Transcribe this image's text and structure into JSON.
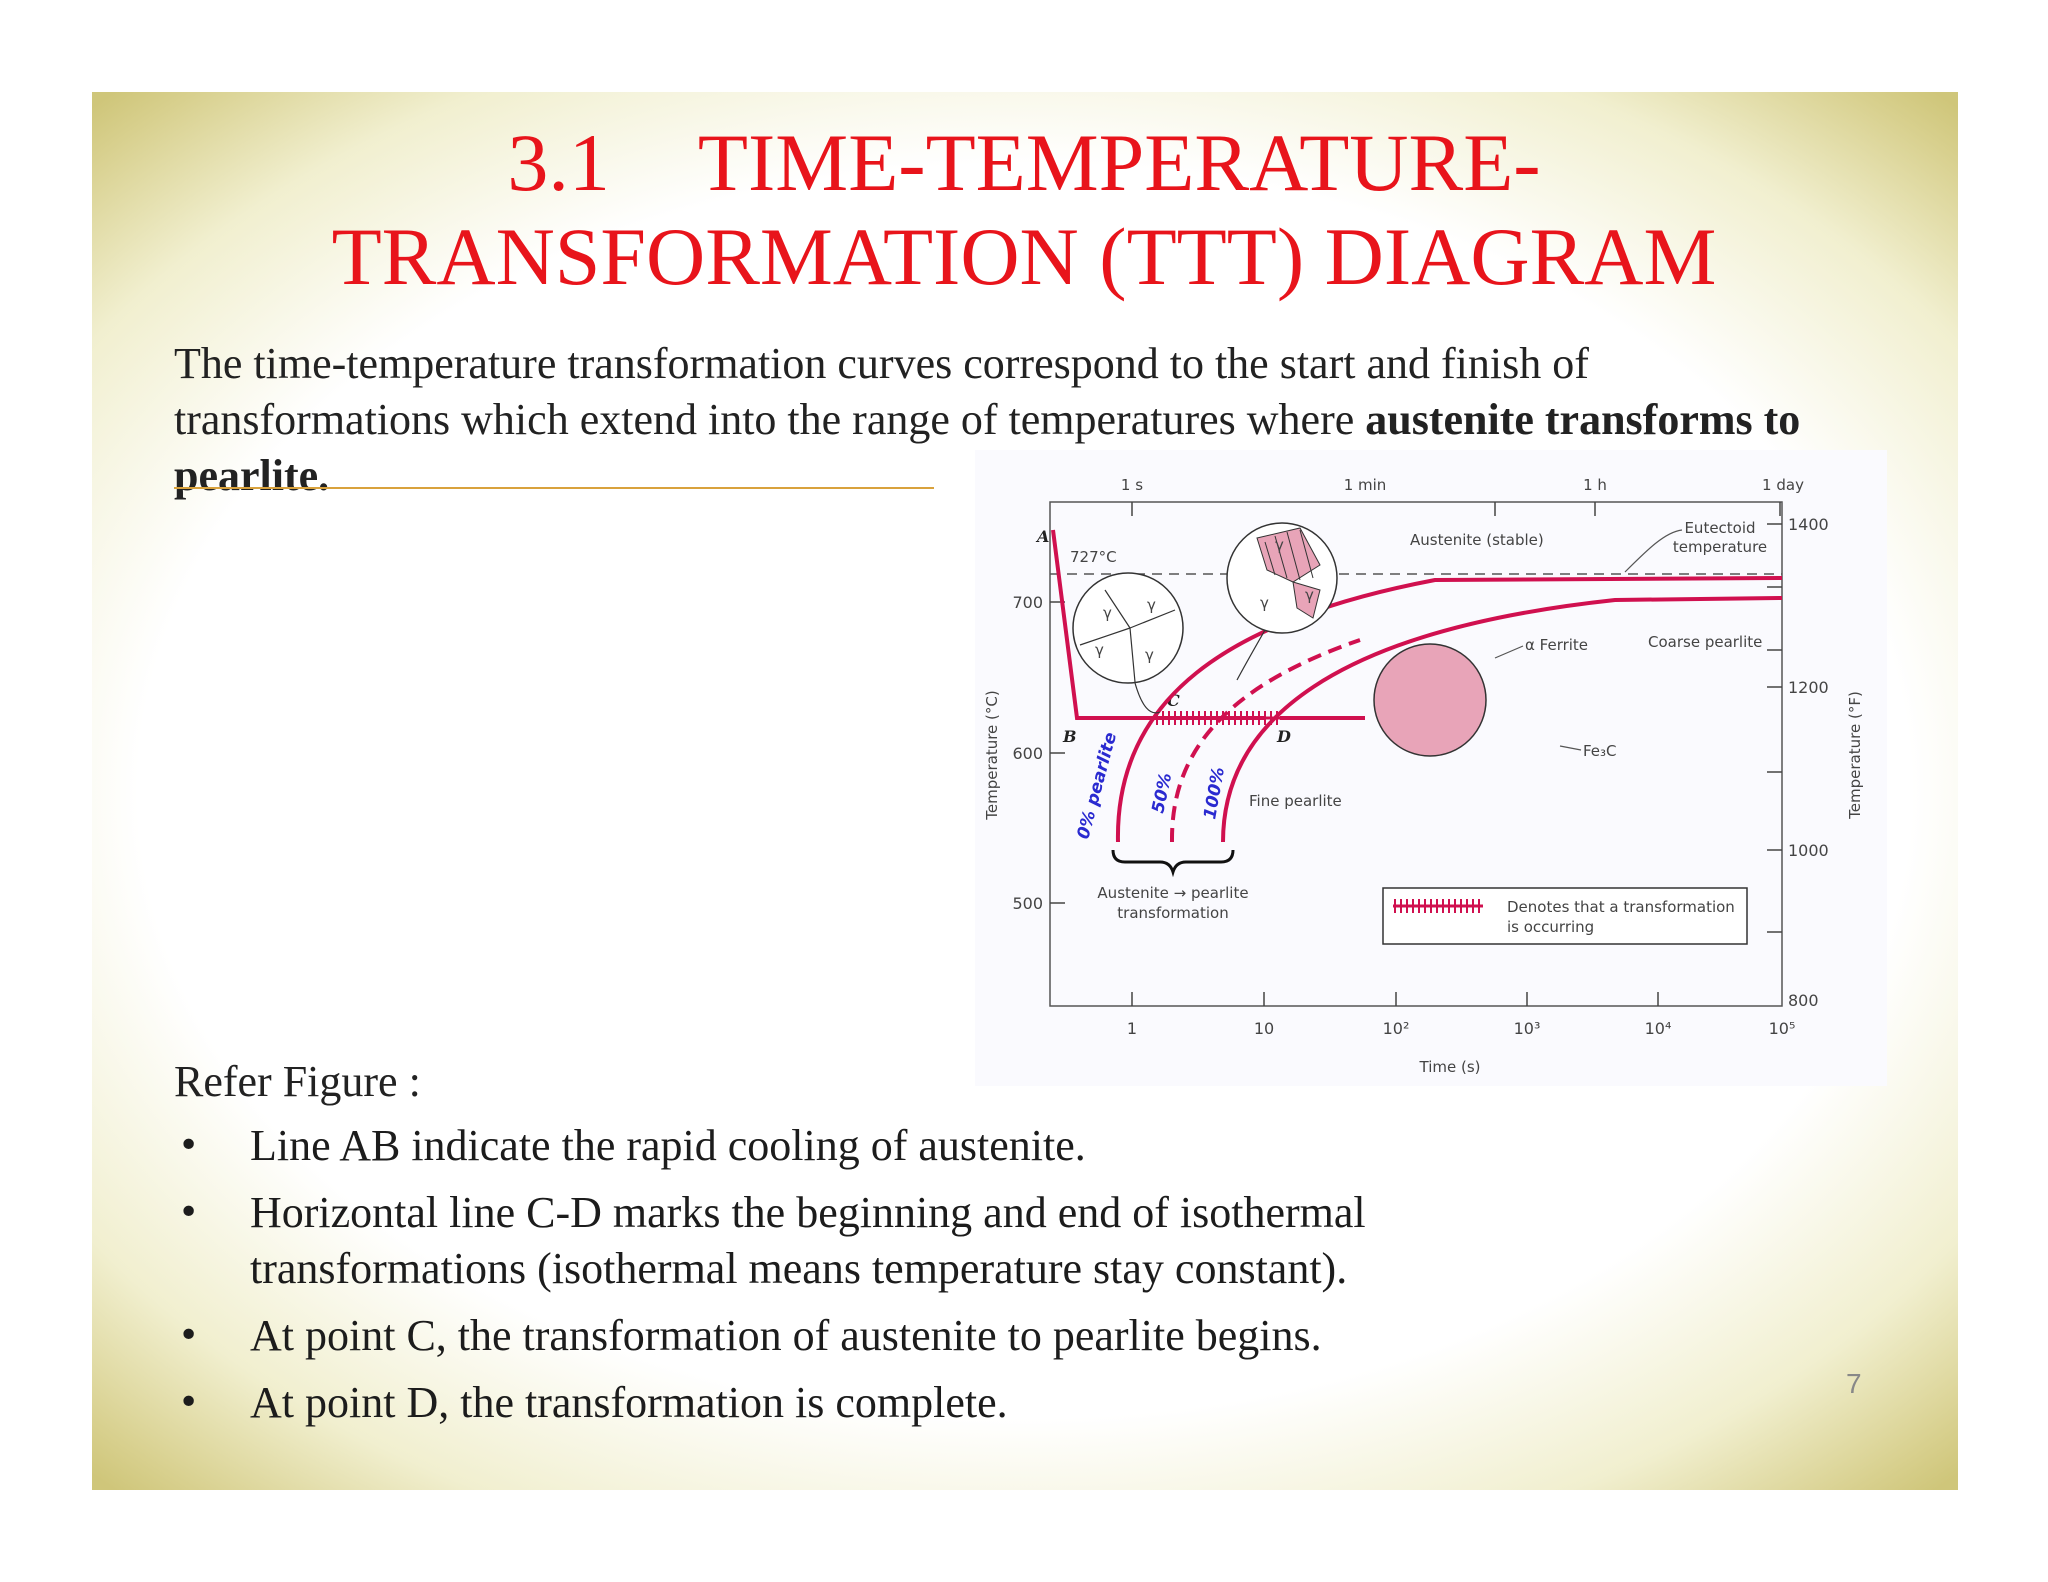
{
  "slide": {
    "title_number": "3.1",
    "title_line1": "TIME-TEMPERATURE-",
    "title_line2": "TRANSFORMATION (TTT) DIAGRAM",
    "intro_text": "The time-temperature transformation curves correspond to the start and finish of transformations which extend into the range of temperatures where ",
    "intro_bold": "austenite transforms to pearlite.",
    "refer_label": "Refer Figure :",
    "bullets": [
      "Line AB indicate the rapid cooling of austenite.",
      "Horizontal line C-D marks the beginning and end of isothermal transformations (isothermal means temperature stay constant).",
      "At point C, the transformation of austenite to pearlite begins.",
      "At point D, the transformation is complete."
    ],
    "page_number": "7"
  },
  "figure": {
    "top_time_labels": [
      "1 s",
      "1 min",
      "1 h",
      "1 day"
    ],
    "bottom_time_labels": [
      "1",
      "10",
      "10²",
      "10³",
      "10⁴",
      "10⁵"
    ],
    "x_axis_label": "Time (s)",
    "left_axis_label": "Temperature (°C)",
    "right_axis_label": "Temperature (°F)",
    "left_ticks": [
      "700",
      "600",
      "500"
    ],
    "right_ticks": [
      "1400",
      "1200",
      "1000",
      "800"
    ],
    "eutectoid_temp": "727°C",
    "point_A": "A",
    "point_B": "B",
    "point_C": "C",
    "point_D": "D",
    "austenite_stable": "Austenite (stable)",
    "eutectoid_label_1": "Eutectoid",
    "eutectoid_label_2": "temperature",
    "ferrite_label": "α Ferrite",
    "coarse_pearlite": "Coarse pearlite",
    "fe3c_label": "Fe₃C",
    "fine_pearlite": "Fine pearlite",
    "curve_0": "0% pearlite",
    "curve_50": "50%",
    "curve_100": "100%",
    "transformation_label_1": "Austenite → pearlite",
    "transformation_label_2": "transformation",
    "legend_line1": "Denotes that a transformation",
    "legend_line2": "is occurring",
    "gamma": "γ",
    "colors": {
      "curve": "#d0104f",
      "title": "#e8141b",
      "blue_text": "#2a2ad0"
    }
  }
}
